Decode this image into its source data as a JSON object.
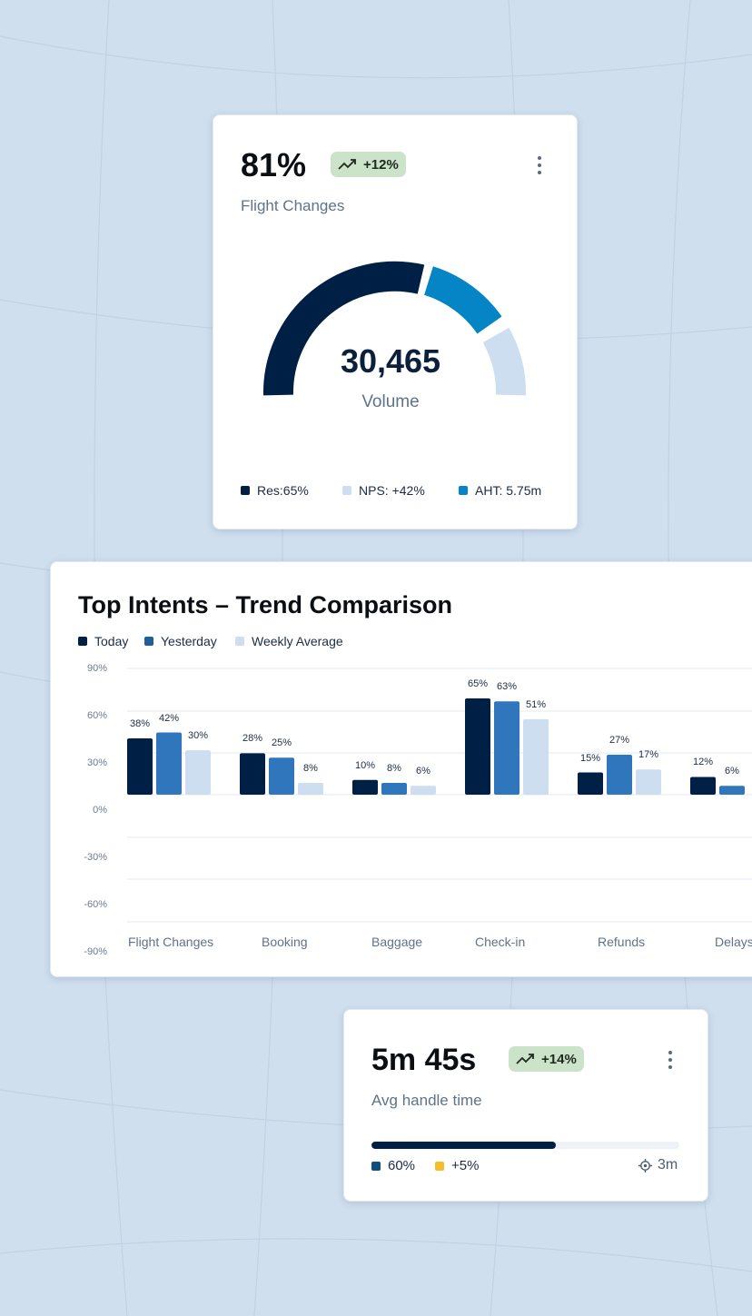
{
  "colors": {
    "background": "#cfdfee",
    "navy": "#001f45",
    "mid_blue": "#2f76bd",
    "light_blue": "#cddef0",
    "gauge_blue": "#0585c6",
    "badge_green": "#cbe3c8",
    "yellow": "#f5bd2c"
  },
  "kpi_card": {
    "value": "81%",
    "trend_icon": "trending-up-icon",
    "trend": "+12%",
    "label": "Flight Changes",
    "gauge_value": "30,465",
    "gauge_label": "Volume",
    "legend": [
      {
        "label": "Res:65%",
        "color": "#001f45"
      },
      {
        "label": "NPS: +42%",
        "color": "#cddef0"
      },
      {
        "label": "AHT: 5.75m",
        "color": "#0585c6"
      }
    ]
  },
  "trend_card": {
    "title": "Top Intents – Trend Comparison",
    "legend": [
      {
        "label": "Today",
        "color": "#001f45"
      },
      {
        "label": "Yesterday",
        "color": "#1f5f99"
      },
      {
        "label": "Weekly Average",
        "color": "#cddef0"
      }
    ]
  },
  "chart_data": {
    "type": "bar",
    "title": "Top Intents – Trend Comparison",
    "categories": [
      "Flight Changes",
      "Booking",
      "Baggage",
      "Check-in",
      "Refunds",
      "Delays"
    ],
    "series": [
      {
        "name": "Today",
        "values": [
          38,
          28,
          10,
          65,
          15,
          12
        ],
        "color": "#001f45"
      },
      {
        "name": "Yesterday",
        "values": [
          42,
          25,
          8,
          63,
          27,
          6
        ],
        "color": "#2f76bd"
      },
      {
        "name": "Weekly Average",
        "values": [
          30,
          8,
          6,
          51,
          17,
          null
        ],
        "color": "#cddef0"
      }
    ],
    "yticks": [
      "90%",
      "60%",
      "30%",
      "0%",
      "-30%",
      "-60%",
      "-90%"
    ],
    "ylim": [
      -90,
      90
    ],
    "grid": true,
    "legend": "top-left"
  },
  "aht_card": {
    "value": "5m 45s",
    "trend_icon": "trending-up-icon",
    "trend": "+14%",
    "label": "Avg handle time",
    "progress": 0.6,
    "legend": [
      {
        "label": "60%",
        "color": "#0d4f80"
      },
      {
        "label": "+5%",
        "color": "#f5bd2c"
      }
    ],
    "target_icon": "target-icon",
    "target": "3m"
  }
}
